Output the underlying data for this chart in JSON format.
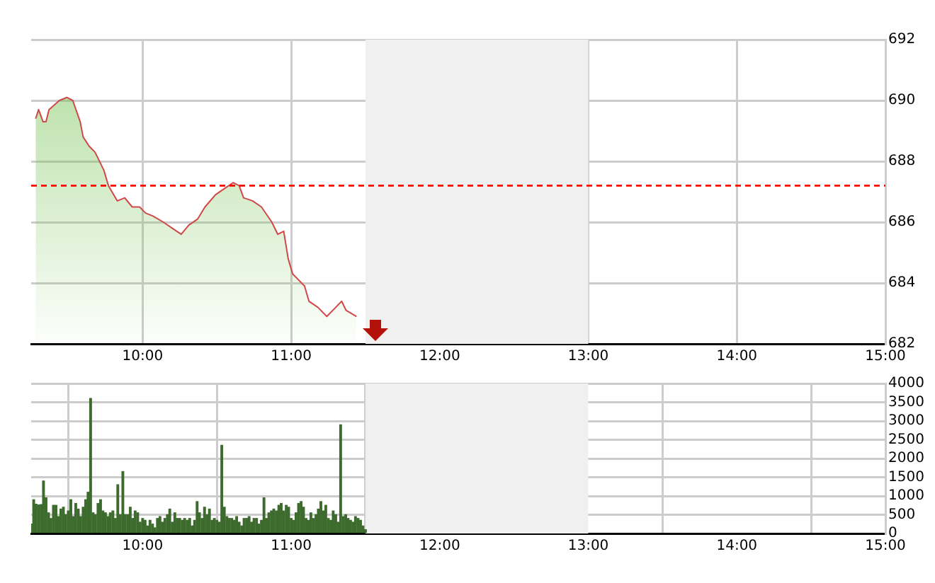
{
  "chart_data": [
    {
      "type": "area",
      "x": [
        9.28,
        9.3,
        9.33,
        9.35,
        9.37,
        9.44,
        9.49,
        9.53,
        9.58,
        9.6,
        9.64,
        9.68,
        9.74,
        9.77,
        9.83,
        9.88,
        9.93,
        9.98,
        10.02,
        10.07,
        10.14,
        10.2,
        10.26,
        10.31,
        10.37,
        10.42,
        10.49,
        10.55,
        10.61,
        10.65,
        10.68,
        10.74,
        10.8,
        10.87,
        10.91,
        10.95,
        10.98,
        11.01,
        11.09,
        11.12,
        11.18,
        11.24,
        11.3,
        11.34,
        11.37,
        11.44
      ],
      "series": [
        {
          "color": "#d04848",
          "values": [
            689.4,
            689.7,
            689.3,
            689.3,
            689.7,
            690.0,
            690.1,
            690.0,
            689.3,
            688.8,
            688.5,
            688.3,
            687.7,
            687.2,
            686.7,
            686.8,
            686.5,
            686.5,
            686.3,
            686.2,
            686.0,
            685.8,
            685.6,
            685.9,
            686.1,
            686.5,
            686.9,
            687.1,
            687.3,
            687.2,
            686.8,
            686.7,
            686.5,
            686.0,
            685.6,
            685.7,
            684.8,
            684.3,
            683.9,
            683.4,
            683.2,
            682.9,
            683.2,
            683.4,
            683.1,
            682.9
          ]
        }
      ],
      "xlim": [
        9.25,
        15
      ],
      "xticks": [
        {
          "value": 10,
          "label": "10:00"
        },
        {
          "value": 11,
          "label": "11:00"
        },
        {
          "value": 12,
          "label": "12:00"
        },
        {
          "value": 13,
          "label": "13:00"
        },
        {
          "value": 14,
          "label": "14:00"
        },
        {
          "value": 15,
          "label": "15:00"
        }
      ],
      "ylim": [
        682,
        692
      ],
      "yticks": [
        682,
        684,
        686,
        688,
        690,
        692
      ],
      "ref_lines": [
        {
          "axis": "y",
          "value": 687.2,
          "color": "#ff0000",
          "line_style": "dashed"
        }
      ],
      "bands": [
        {
          "axis": "x",
          "from": 11.5,
          "to": 13,
          "color": "#f0f0f0"
        }
      ],
      "grid": true,
      "legend": false
    },
    {
      "type": "bar",
      "x": [
        9.25,
        9.267,
        9.283,
        9.3,
        9.317,
        9.333,
        9.35,
        9.367,
        9.383,
        9.4,
        9.417,
        9.433,
        9.45,
        9.467,
        9.483,
        9.5,
        9.517,
        9.533,
        9.55,
        9.567,
        9.583,
        9.6,
        9.617,
        9.633,
        9.65,
        9.667,
        9.683,
        9.7,
        9.717,
        9.733,
        9.75,
        9.767,
        9.783,
        9.8,
        9.817,
        9.833,
        9.85,
        9.867,
        9.883,
        9.9,
        9.917,
        9.933,
        9.95,
        9.967,
        9.983,
        10,
        10.017,
        10.033,
        10.05,
        10.067,
        10.083,
        10.1,
        10.117,
        10.133,
        10.15,
        10.167,
        10.183,
        10.2,
        10.217,
        10.233,
        10.25,
        10.267,
        10.283,
        10.3,
        10.317,
        10.333,
        10.35,
        10.367,
        10.383,
        10.4,
        10.417,
        10.433,
        10.45,
        10.467,
        10.483,
        10.5,
        10.517,
        10.533,
        10.55,
        10.567,
        10.583,
        10.6,
        10.617,
        10.633,
        10.65,
        10.667,
        10.683,
        10.7,
        10.717,
        10.733,
        10.75,
        10.767,
        10.783,
        10.8,
        10.817,
        10.833,
        10.85,
        10.867,
        10.883,
        10.9,
        10.917,
        10.933,
        10.95,
        10.967,
        10.983,
        11,
        11.017,
        11.033,
        11.05,
        11.067,
        11.083,
        11.1,
        11.117,
        11.133,
        11.15,
        11.167,
        11.183,
        11.2,
        11.217,
        11.233,
        11.25,
        11.267,
        11.283,
        11.3,
        11.317,
        11.333,
        11.35,
        11.367,
        11.383,
        11.4,
        11.417,
        11.433,
        11.45,
        11.467,
        11.483,
        11.5
      ],
      "series": [
        {
          "color": "#3d6b2e",
          "values": [
            250,
            900,
            780,
            760,
            770,
            1400,
            950,
            550,
            400,
            750,
            750,
            450,
            650,
            700,
            500,
            600,
            900,
            450,
            800,
            650,
            450,
            700,
            900,
            1100,
            3600,
            550,
            500,
            800,
            900,
            600,
            550,
            450,
            550,
            600,
            400,
            1300,
            500,
            1650,
            500,
            500,
            700,
            400,
            600,
            550,
            300,
            400,
            350,
            200,
            350,
            250,
            150,
            400,
            450,
            300,
            400,
            500,
            650,
            300,
            550,
            400,
            400,
            350,
            400,
            350,
            400,
            200,
            350,
            850,
            550,
            400,
            700,
            500,
            650,
            350,
            400,
            350,
            300,
            2350,
            700,
            450,
            400,
            400,
            350,
            450,
            300,
            200,
            400,
            400,
            450,
            300,
            400,
            400,
            250,
            350,
            950,
            400,
            550,
            600,
            650,
            600,
            750,
            800,
            600,
            750,
            700,
            400,
            350,
            550,
            800,
            850,
            700,
            400,
            350,
            550,
            400,
            500,
            650,
            850,
            600,
            750,
            400,
            350,
            600,
            500,
            300,
            2900,
            450,
            500,
            400,
            350,
            300,
            450,
            400,
            350,
            200,
            100
          ]
        }
      ],
      "xlim": [
        9.25,
        15
      ],
      "xticks": [
        {
          "value": 10,
          "label": "10:00"
        },
        {
          "value": 11,
          "label": "11:00"
        },
        {
          "value": 12,
          "label": "12:00"
        },
        {
          "value": 13,
          "label": "13:00"
        },
        {
          "value": 14,
          "label": "14:00"
        },
        {
          "value": 15,
          "label": "15:00"
        }
      ],
      "ylim": [
        0,
        4000
      ],
      "yticks": [
        0,
        500,
        1000,
        1500,
        2000,
        2500,
        3000,
        3500,
        4000
      ],
      "bands": [
        {
          "axis": "x",
          "from": 11.5,
          "to": 13,
          "color": "#f0f0f0"
        }
      ],
      "grid": true,
      "legend": false
    }
  ]
}
